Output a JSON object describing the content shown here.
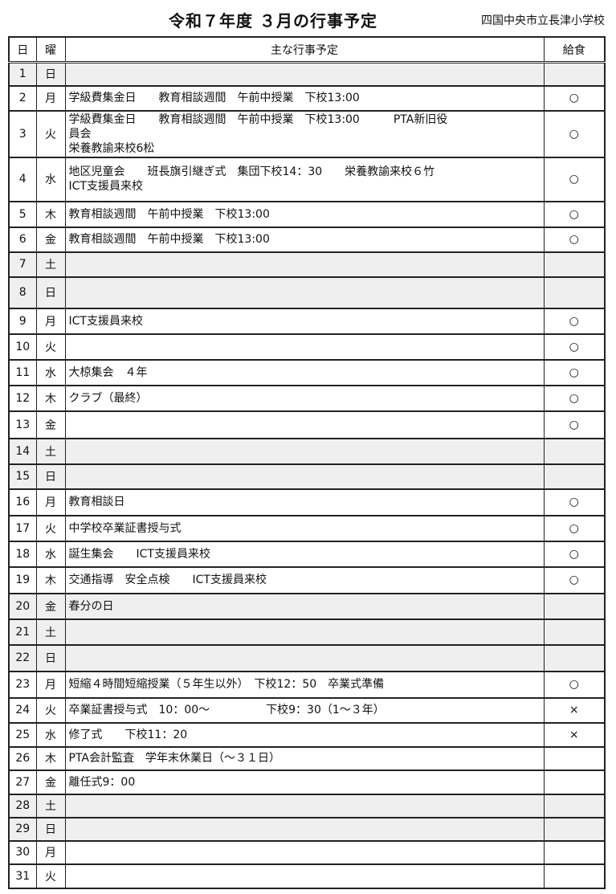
{
  "header": {
    "title": "令和７年度 ３月の行事予定",
    "school": "四国中央市立長津小学校"
  },
  "columns": {
    "day": "日",
    "weekday": "曜",
    "events": "主な行事予定",
    "lunch": "給食"
  },
  "rows": [
    {
      "day": "1",
      "wd": "日",
      "ev": "",
      "lunch": "",
      "shade": true
    },
    {
      "day": "2",
      "wd": "月",
      "ev": "学級費集金日　　教育相談週間　午前中授業　下校13:00",
      "lunch": "○"
    },
    {
      "day": "3",
      "wd": "火",
      "ev": "学級費集金日　　教育相談週間　午前中授業　下校13:00　　　PTA新旧役\n員会\n栄養教諭来校6松",
      "lunch": "○"
    },
    {
      "day": "4",
      "wd": "水",
      "ev": "地区児童会　　班長旗引継ぎ式　集団下校14：30　　栄養教諭来校６竹\nICT支援員来校",
      "lunch": "○"
    },
    {
      "day": "5",
      "wd": "木",
      "ev": "教育相談週間　午前中授業　下校13:00",
      "lunch": "○"
    },
    {
      "day": "6",
      "wd": "金",
      "ev": "教育相談週間　午前中授業　下校13:00",
      "lunch": "○"
    },
    {
      "day": "7",
      "wd": "土",
      "ev": "",
      "lunch": "",
      "shade": true
    },
    {
      "day": "8",
      "wd": "日",
      "ev": "",
      "lunch": "",
      "shade": true
    },
    {
      "day": "9",
      "wd": "月",
      "ev": "ICT支援員来校",
      "lunch": "○"
    },
    {
      "day": "10",
      "wd": "火",
      "ev": "",
      "lunch": "○"
    },
    {
      "day": "11",
      "wd": "水",
      "ev": "大椋集会　４年",
      "lunch": "○"
    },
    {
      "day": "12",
      "wd": "木",
      "ev": "クラブ（最終）",
      "lunch": "○"
    },
    {
      "day": "13",
      "wd": "金",
      "ev": "",
      "lunch": "○"
    },
    {
      "day": "14",
      "wd": "土",
      "ev": "",
      "lunch": "",
      "shade": true
    },
    {
      "day": "15",
      "wd": "日",
      "ev": "",
      "lunch": "",
      "shade": true
    },
    {
      "day": "16",
      "wd": "月",
      "ev": "教育相談日",
      "lunch": "○"
    },
    {
      "day": "17",
      "wd": "火",
      "ev": "中学校卒業証書授与式",
      "lunch": "○"
    },
    {
      "day": "18",
      "wd": "水",
      "ev": "誕生集会　　ICT支援員来校",
      "lunch": "○"
    },
    {
      "day": "19",
      "wd": "木",
      "ev": "交通指導　安全点検　　ICT支援員来校",
      "lunch": "○"
    },
    {
      "day": "20",
      "wd": "金",
      "ev": "春分の日",
      "lunch": "",
      "shade": true
    },
    {
      "day": "21",
      "wd": "土",
      "ev": "",
      "lunch": "",
      "shade": true
    },
    {
      "day": "22",
      "wd": "日",
      "ev": "",
      "lunch": "",
      "shade": true
    },
    {
      "day": "23",
      "wd": "月",
      "ev": "短縮４時間短縮授業（５年生以外）　下校12：50　卒業式準備",
      "lunch": "○"
    },
    {
      "day": "24",
      "wd": "火",
      "ev": "卒業証書授与式　10：00～　　　　　下校9：30（1～３年）",
      "lunch": "×"
    },
    {
      "day": "25",
      "wd": "水",
      "ev": "修了式　　下校11：20",
      "lunch": "×"
    },
    {
      "day": "26",
      "wd": "木",
      "ev": "PTA会計監査　学年末休業日（～３１日）",
      "lunch": ""
    },
    {
      "day": "27",
      "wd": "金",
      "ev": "離任式9：00",
      "lunch": ""
    },
    {
      "day": "28",
      "wd": "土",
      "ev": "",
      "lunch": "",
      "shade": true
    },
    {
      "day": "29",
      "wd": "日",
      "ev": "",
      "lunch": "",
      "shade": true
    },
    {
      "day": "30",
      "wd": "月",
      "ev": "",
      "lunch": ""
    },
    {
      "day": "31",
      "wd": "火",
      "ev": "",
      "lunch": ""
    }
  ]
}
